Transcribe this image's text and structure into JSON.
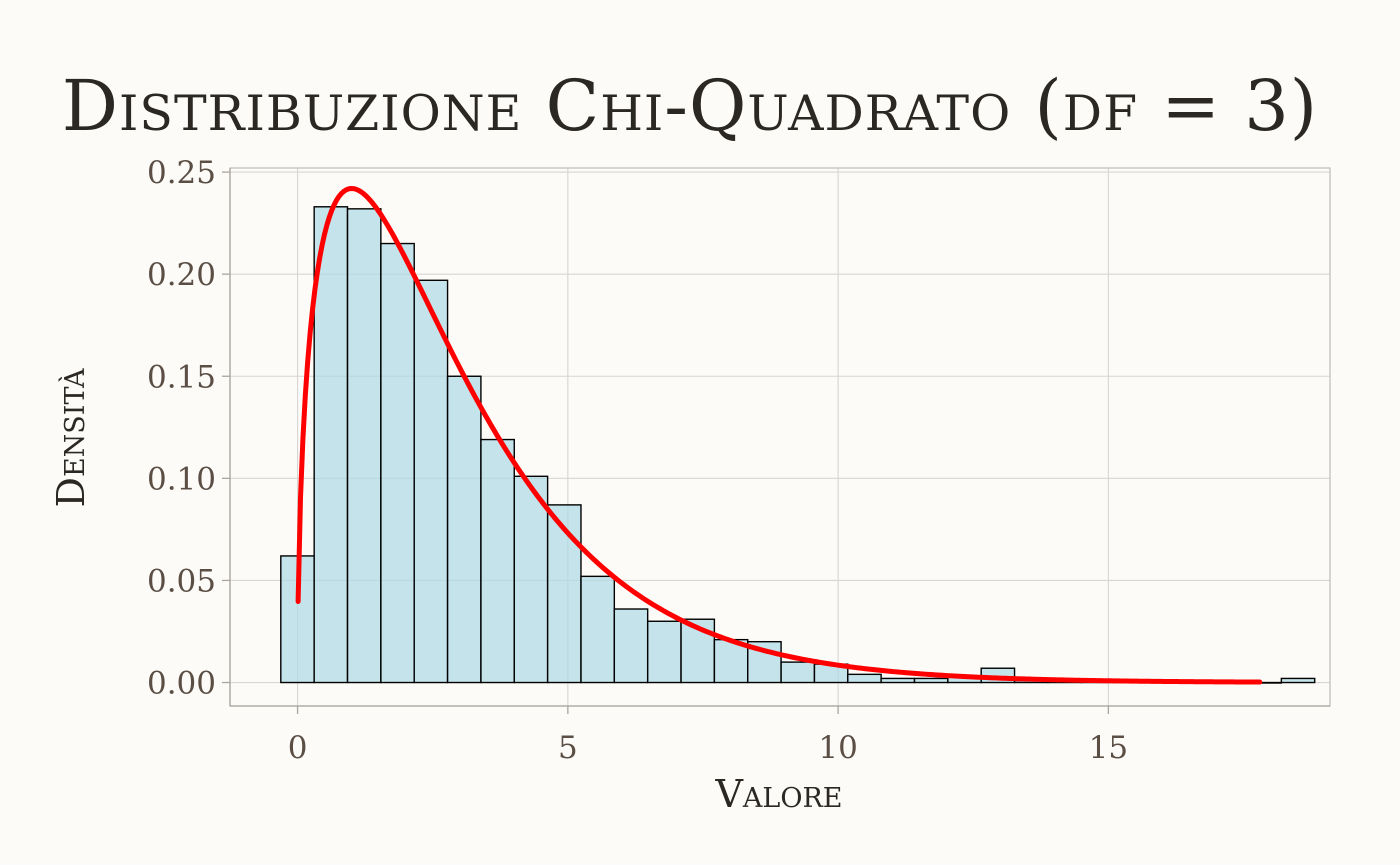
{
  "chart_data": {
    "type": "bar",
    "title": "Distribuzione Chi-Quadrato (df = 3)",
    "xlabel": "Valore",
    "ylabel": "Densità",
    "xlim": [
      -1.25,
      19.1
    ],
    "ylim": [
      -0.0115,
      0.252
    ],
    "x_ticks": [
      0,
      5,
      10,
      15
    ],
    "x_tick_labels": [
      "0",
      "5",
      "10",
      "15"
    ],
    "y_ticks": [
      0,
      0.05,
      0.1,
      0.15,
      0.2,
      0.25
    ],
    "y_tick_labels": [
      "0.00",
      "0.05",
      "0.10",
      "0.15",
      "0.20",
      "0.25"
    ],
    "grid": true,
    "bin_width": 0.617,
    "bins_start": -0.31,
    "histogram_density": [
      0.062,
      0.233,
      0.232,
      0.215,
      0.197,
      0.15,
      0.119,
      0.101,
      0.087,
      0.052,
      0.036,
      0.03,
      0.031,
      0.021,
      0.02,
      0.01,
      0.009,
      0.004,
      0.002,
      0.002,
      0.003,
      0.007,
      0.001,
      0.001,
      0.001,
      0.0005,
      0.0003,
      0.0005,
      0.0003,
      0.0,
      0.002
    ],
    "series": [
      {
        "type": "bar",
        "color": "#add8e6"
      },
      {
        "type": "line",
        "color": "#ff0000",
        "x_range": [
          0.01,
          17.8
        ]
      }
    ],
    "colors": {
      "bar_fill": "#add8e6",
      "bar_stroke": "#000000",
      "curve": "#ff0000",
      "background": "#fcfbf8"
    }
  }
}
